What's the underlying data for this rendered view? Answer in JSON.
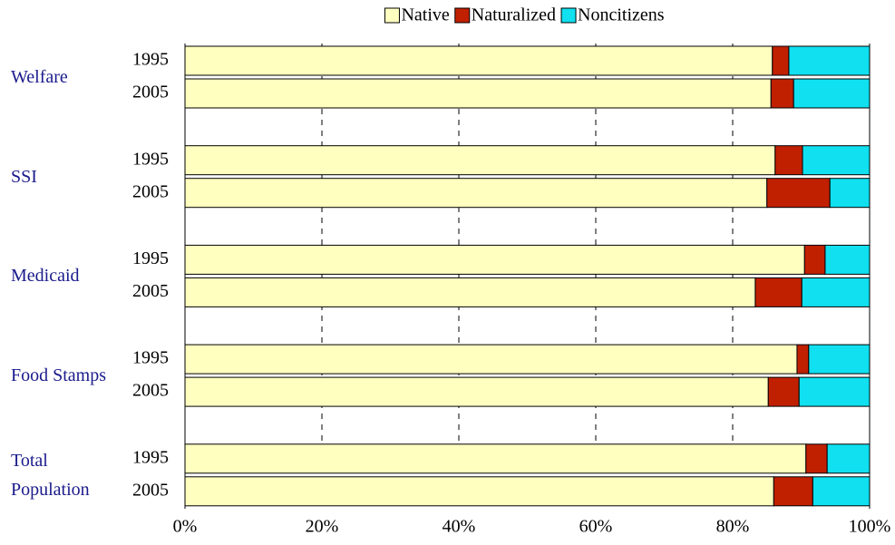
{
  "chart_data": {
    "type": "stacked-bar-horizontal",
    "groups": [
      "Welfare",
      "SSI",
      "Medicaid",
      "Food Stamps",
      "Total Population"
    ],
    "categories": [
      "1995",
      "2005",
      "1995",
      "2005",
      "1995",
      "2005",
      "1995",
      "2005",
      "1995",
      "2005"
    ],
    "series": [
      {
        "name": "Native",
        "color": "#ffffc0",
        "values": [
          85.8,
          85.6,
          86.2,
          85.0,
          90.5,
          83.3,
          89.4,
          85.2,
          90.7,
          86.0
        ]
      },
      {
        "name": "Naturalized",
        "color": "#c02000",
        "values": [
          2.4,
          3.3,
          4.0,
          9.2,
          3.0,
          6.8,
          1.7,
          4.5,
          3.1,
          5.7
        ]
      },
      {
        "name": "Noncitizens",
        "color": "#10e0f0",
        "values": [
          11.8,
          11.1,
          9.8,
          5.8,
          6.5,
          9.9,
          8.9,
          10.3,
          6.2,
          8.3
        ]
      }
    ],
    "xlim": [
      0,
      100
    ],
    "xticks": [
      {
        "value": 0,
        "label": "0%"
      },
      {
        "value": 20,
        "label": "20%"
      },
      {
        "value": 40,
        "label": "40%"
      },
      {
        "value": 60,
        "label": "60%"
      },
      {
        "value": 80,
        "label": "80%"
      },
      {
        "value": 100,
        "label": "100%"
      }
    ],
    "grid": true,
    "legend": "top"
  }
}
